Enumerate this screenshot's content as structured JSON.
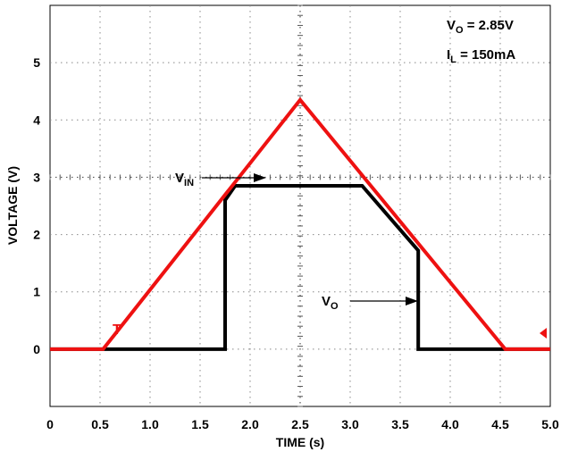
{
  "chart_data": {
    "type": "line",
    "xlabel": "TIME (s)",
    "ylabel": "VOLTAGE (V)",
    "xlim": [
      0,
      5
    ],
    "ylim": [
      -1,
      6
    ],
    "x_ticks": [
      "0",
      "0.5",
      "1.0",
      "1.5",
      "2.0",
      "2.5",
      "3.0",
      "3.5",
      "4.0",
      "4.5",
      "5.0"
    ],
    "y_ticks": [
      "0",
      "1",
      "2",
      "3",
      "4",
      "5"
    ],
    "grid": true,
    "series": [
      {
        "name": "VIN",
        "label_main": "V",
        "label_sub": "IN",
        "color": "#ee1111",
        "x": [
          0,
          0.53,
          2.5,
          4.55,
          5.0
        ],
        "y": [
          0,
          0,
          4.35,
          0,
          0
        ]
      },
      {
        "name": "VO",
        "label_main": "V",
        "label_sub": "O",
        "color": "#000000",
        "x": [
          0,
          1.75,
          1.75,
          1.85,
          3.12,
          3.68,
          3.68,
          5.0
        ],
        "y": [
          0,
          0,
          2.6,
          2.85,
          2.85,
          1.72,
          0,
          0
        ]
      }
    ],
    "annotations": {
      "vo_main": "V",
      "vo_sub": "O",
      "vo_value": " = 2.85V",
      "il_main": "I",
      "il_sub": "L",
      "il_value": " = 150mA"
    }
  }
}
